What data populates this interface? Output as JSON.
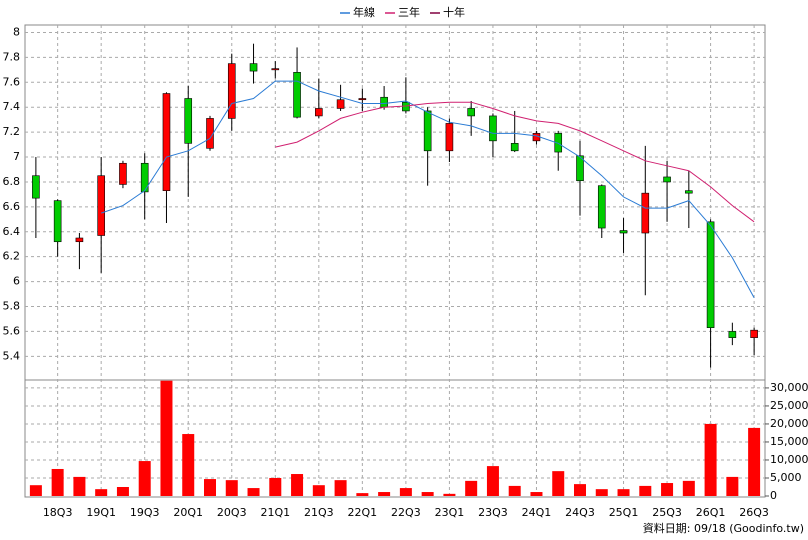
{
  "chart_data": {
    "type": "candlestick",
    "legend": "top",
    "grid": true,
    "up_color": "#ff0000",
    "down_color": "#00cc00",
    "source": "資料日期: 09/18 (Goodinfo.tw)",
    "categories": [
      null,
      "18Q3",
      null,
      "19Q1",
      null,
      "19Q3",
      null,
      "20Q1",
      null,
      "20Q3",
      null,
      "21Q1",
      null,
      "21Q3",
      null,
      "22Q1",
      null,
      "22Q3",
      null,
      "23Q1",
      null,
      "23Q3",
      null,
      "24Q1",
      null,
      "24Q3",
      null,
      "25Q1",
      null,
      "25Q3",
      null,
      "26Q1",
      null,
      "26Q3"
    ],
    "open": [
      6.85,
      6.65,
      6.32,
      6.37,
      6.78,
      6.95,
      6.73,
      7.47,
      7.07,
      7.31,
      7.75,
      7.7,
      7.68,
      7.33,
      7.39,
      7.46,
      7.48,
      7.44,
      7.37,
      7.05,
      7.39,
      7.33,
      7.11,
      7.13,
      7.19,
      7.01,
      6.77,
      6.41,
      6.39,
      6.84,
      6.73,
      6.48,
      5.6,
      5.55
    ],
    "high": [
      7.0,
      6.66,
      6.39,
      7.0,
      6.97,
      7.03,
      7.52,
      7.57,
      7.33,
      7.83,
      7.91,
      7.77,
      7.88,
      7.63,
      7.58,
      7.55,
      7.57,
      7.64,
      7.4,
      7.31,
      7.45,
      7.35,
      7.37,
      7.21,
      7.21,
      7.13,
      6.78,
      6.51,
      7.09,
      6.97,
      6.89,
      6.5,
      5.67,
      5.63
    ],
    "low": [
      6.35,
      6.2,
      6.1,
      6.07,
      6.75,
      6.5,
      6.47,
      6.68,
      7.05,
      7.21,
      7.59,
      7.63,
      7.31,
      7.31,
      7.37,
      7.37,
      7.38,
      7.35,
      6.77,
      6.96,
      7.17,
      7.0,
      7.04,
      7.1,
      6.89,
      6.53,
      6.35,
      6.23,
      5.89,
      6.48,
      6.43,
      5.31,
      5.49,
      5.41
    ],
    "close": [
      6.67,
      6.32,
      6.35,
      6.85,
      6.95,
      6.72,
      7.51,
      7.11,
      7.31,
      7.75,
      7.69,
      7.71,
      7.32,
      7.39,
      7.46,
      7.47,
      7.4,
      7.37,
      7.05,
      7.27,
      7.33,
      7.13,
      7.05,
      7.19,
      7.04,
      6.81,
      6.43,
      6.39,
      6.71,
      6.8,
      6.71,
      5.63,
      5.55,
      5.61
    ],
    "ylim": [
      5.21,
      8.06
    ],
    "yticks": [
      5.4,
      5.6,
      5.8,
      6,
      6.2,
      6.4,
      6.6,
      6.8,
      7,
      7.2,
      7.4,
      7.6,
      7.8,
      8
    ],
    "series": [
      {
        "name": "年線",
        "color": "#2a7bd4",
        "values": [
          null,
          null,
          null,
          6.55,
          6.61,
          6.73,
          7.0,
          7.05,
          7.15,
          7.43,
          7.47,
          7.61,
          7.61,
          7.53,
          7.48,
          7.43,
          7.43,
          7.45,
          7.36,
          7.28,
          7.25,
          7.19,
          7.19,
          7.17,
          7.11,
          7.0,
          6.85,
          6.68,
          6.59,
          6.59,
          6.65,
          6.45,
          6.19,
          5.87
        ]
      },
      {
        "name": "三年",
        "color": "#d02070",
        "values": [
          null,
          null,
          null,
          null,
          null,
          null,
          null,
          null,
          null,
          null,
          null,
          7.08,
          7.12,
          7.21,
          7.31,
          7.36,
          7.4,
          7.41,
          7.43,
          7.44,
          7.44,
          7.39,
          7.33,
          7.29,
          7.27,
          7.21,
          7.13,
          7.05,
          6.97,
          6.93,
          6.89,
          6.76,
          6.61,
          6.48
        ]
      },
      {
        "name": "十年",
        "color": "#800040",
        "values": [
          null,
          null,
          null,
          null,
          null,
          null,
          null,
          null,
          null,
          null,
          null,
          null,
          null,
          null,
          null,
          null,
          null,
          null,
          null,
          null,
          null,
          null,
          null,
          null,
          null,
          null,
          null,
          null,
          null,
          null,
          null,
          null,
          null,
          null
        ]
      }
    ],
    "volume": {
      "color": "#ff0000",
      "values": [
        3000,
        7500,
        5300,
        1900,
        2500,
        9700,
        32000,
        17200,
        4700,
        4400,
        2200,
        5000,
        6100,
        3000,
        4400,
        800,
        1100,
        2200,
        1100,
        600,
        4200,
        8300,
        2800,
        1100,
        6900,
        3300,
        1900,
        1900,
        2800,
        3600,
        4200,
        20000,
        5300,
        18900
      ],
      "ylim": [
        0,
        32200
      ],
      "yticks": [
        0,
        {
          "value": 5000,
          "label": "5,000"
        },
        {
          "value": 10000,
          "label": "10,000"
        },
        {
          "value": 15000,
          "label": "15,000"
        },
        {
          "value": 20000,
          "label": "20,000"
        },
        {
          "value": 25000,
          "label": "25,000"
        },
        {
          "value": 30000,
          "label": "30,000"
        }
      ]
    }
  }
}
